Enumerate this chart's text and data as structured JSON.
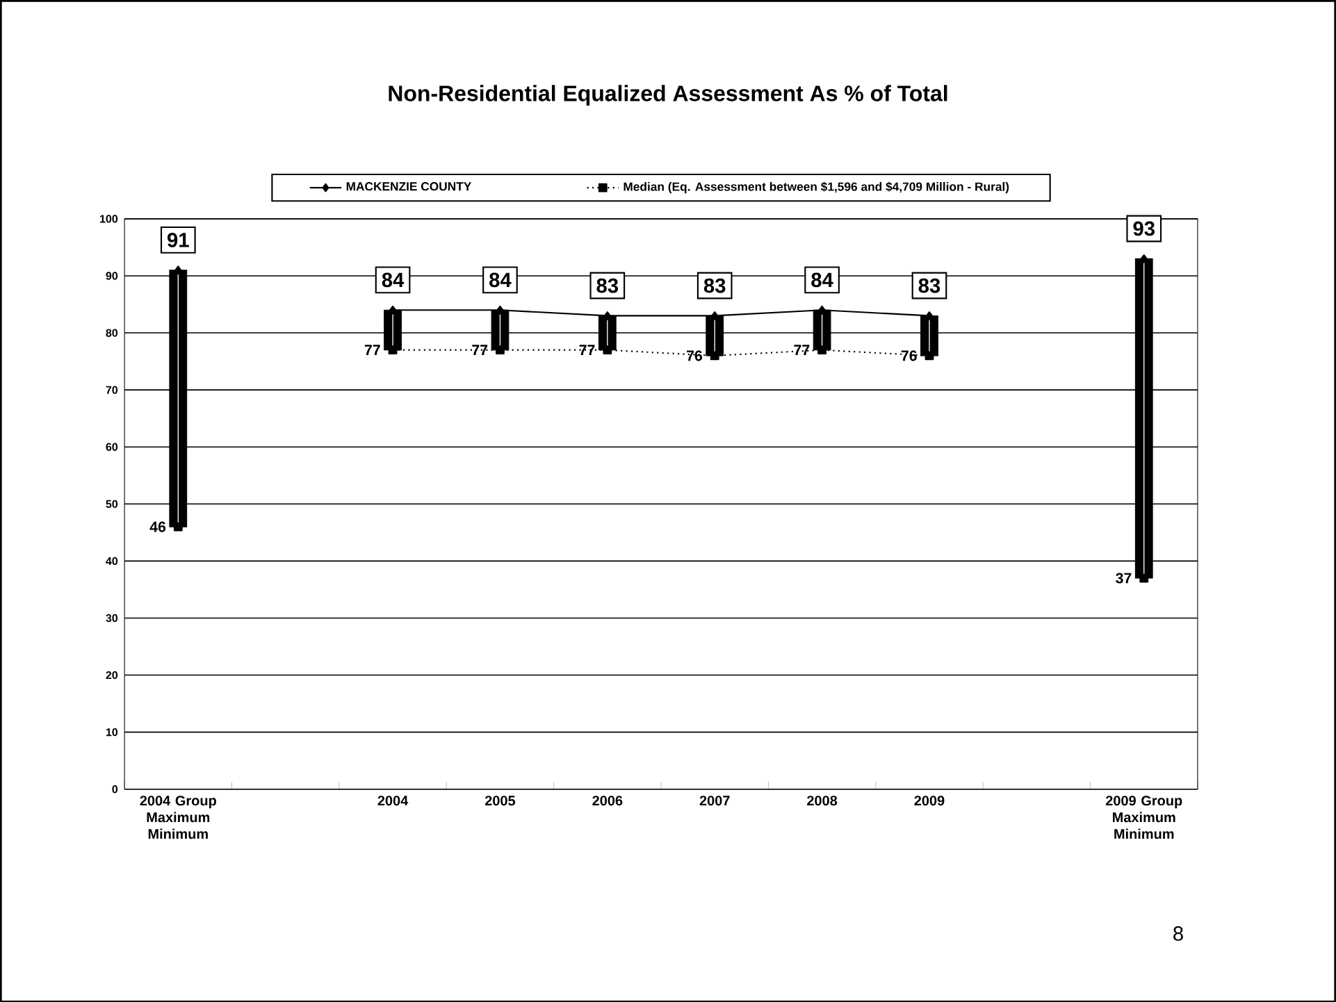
{
  "chart_data": {
    "type": "line",
    "title": "Non-Residential Equalized Assessment As % of Total",
    "categories": [
      "2004 Group Maximum Minimum",
      null,
      "2004",
      "2005",
      "2006",
      "2007",
      "2008",
      "2009",
      null,
      "2009 Group Maximum Minimum"
    ],
    "series": [
      {
        "type": "bar",
        "color": "#000000",
        "base": [
          46,
          null,
          77,
          77,
          77,
          76,
          77,
          76,
          null,
          37
        ],
        "values": [
          45,
          null,
          7,
          7,
          6,
          7,
          7,
          7,
          null,
          56
        ]
      },
      {
        "name": "MACKENZIE COUNTY",
        "color": "#000000",
        "marker": "diamond",
        "line_style": "solid",
        "values": [
          91,
          null,
          84,
          84,
          83,
          83,
          84,
          83,
          null,
          93
        ],
        "value_labels": [
          "91",
          null,
          "84",
          "84",
          "83",
          "83",
          "84",
          "83",
          null,
          "93"
        ]
      },
      {
        "name": "Median (Eq. Assessment between $1,596 and $4,709 Million - Rural)",
        "color": "#000000",
        "marker": "square",
        "line_style": "dotted",
        "values": [
          46,
          null,
          77,
          77,
          77,
          76,
          77,
          76,
          null,
          37
        ],
        "value_labels": [
          "46",
          null,
          "77",
          "77",
          "77",
          "76",
          "77",
          "76",
          null,
          "37"
        ]
      }
    ],
    "ylim": [
      0,
      100
    ],
    "yticks": [
      0,
      10,
      20,
      30,
      40,
      50,
      60,
      70,
      80,
      90,
      100
    ],
    "grid": "y",
    "legend": "top",
    "annotations": [
      "8"
    ]
  }
}
